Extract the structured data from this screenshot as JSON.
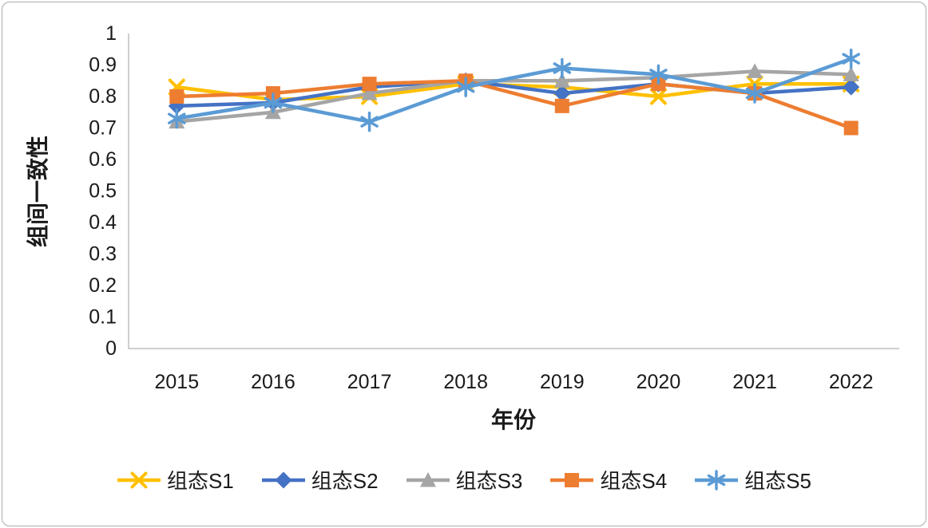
{
  "chart_data": {
    "type": "line",
    "title": "",
    "xlabel": "年份",
    "ylabel": "组间一致性",
    "categories": [
      "2015",
      "2016",
      "2017",
      "2018",
      "2019",
      "2020",
      "2021",
      "2022"
    ],
    "ylim": [
      0,
      1
    ],
    "ytick_step": 0.1,
    "yticks": [
      "0",
      "0.1",
      "0.2",
      "0.3",
      "0.4",
      "0.5",
      "0.6",
      "0.7",
      "0.8",
      "0.9",
      "1"
    ],
    "grid": false,
    "legend_position": "bottom",
    "axis_color": "#bfbfbf",
    "text_color": "#1a1a1a",
    "series": [
      {
        "name": "组态S1",
        "color": "#FFC000",
        "marker": "x",
        "values": [
          0.83,
          0.79,
          0.8,
          0.84,
          0.83,
          0.8,
          0.84,
          0.84
        ]
      },
      {
        "name": "组态S2",
        "color": "#4472C4",
        "marker": "diamond",
        "values": [
          0.77,
          0.78,
          0.83,
          0.85,
          0.81,
          0.84,
          0.81,
          0.83
        ]
      },
      {
        "name": "组态S3",
        "color": "#A5A5A5",
        "marker": "triangle",
        "values": [
          0.72,
          0.75,
          0.81,
          0.85,
          0.85,
          0.86,
          0.88,
          0.87
        ]
      },
      {
        "name": "组态S4",
        "color": "#ED7D31",
        "marker": "square",
        "values": [
          0.8,
          0.81,
          0.84,
          0.85,
          0.77,
          0.84,
          0.81,
          0.7
        ]
      },
      {
        "name": "组态S5",
        "color": "#5B9BD5",
        "marker": "asterisk",
        "values": [
          0.73,
          0.78,
          0.72,
          0.83,
          0.89,
          0.87,
          0.81,
          0.92
        ]
      }
    ]
  }
}
